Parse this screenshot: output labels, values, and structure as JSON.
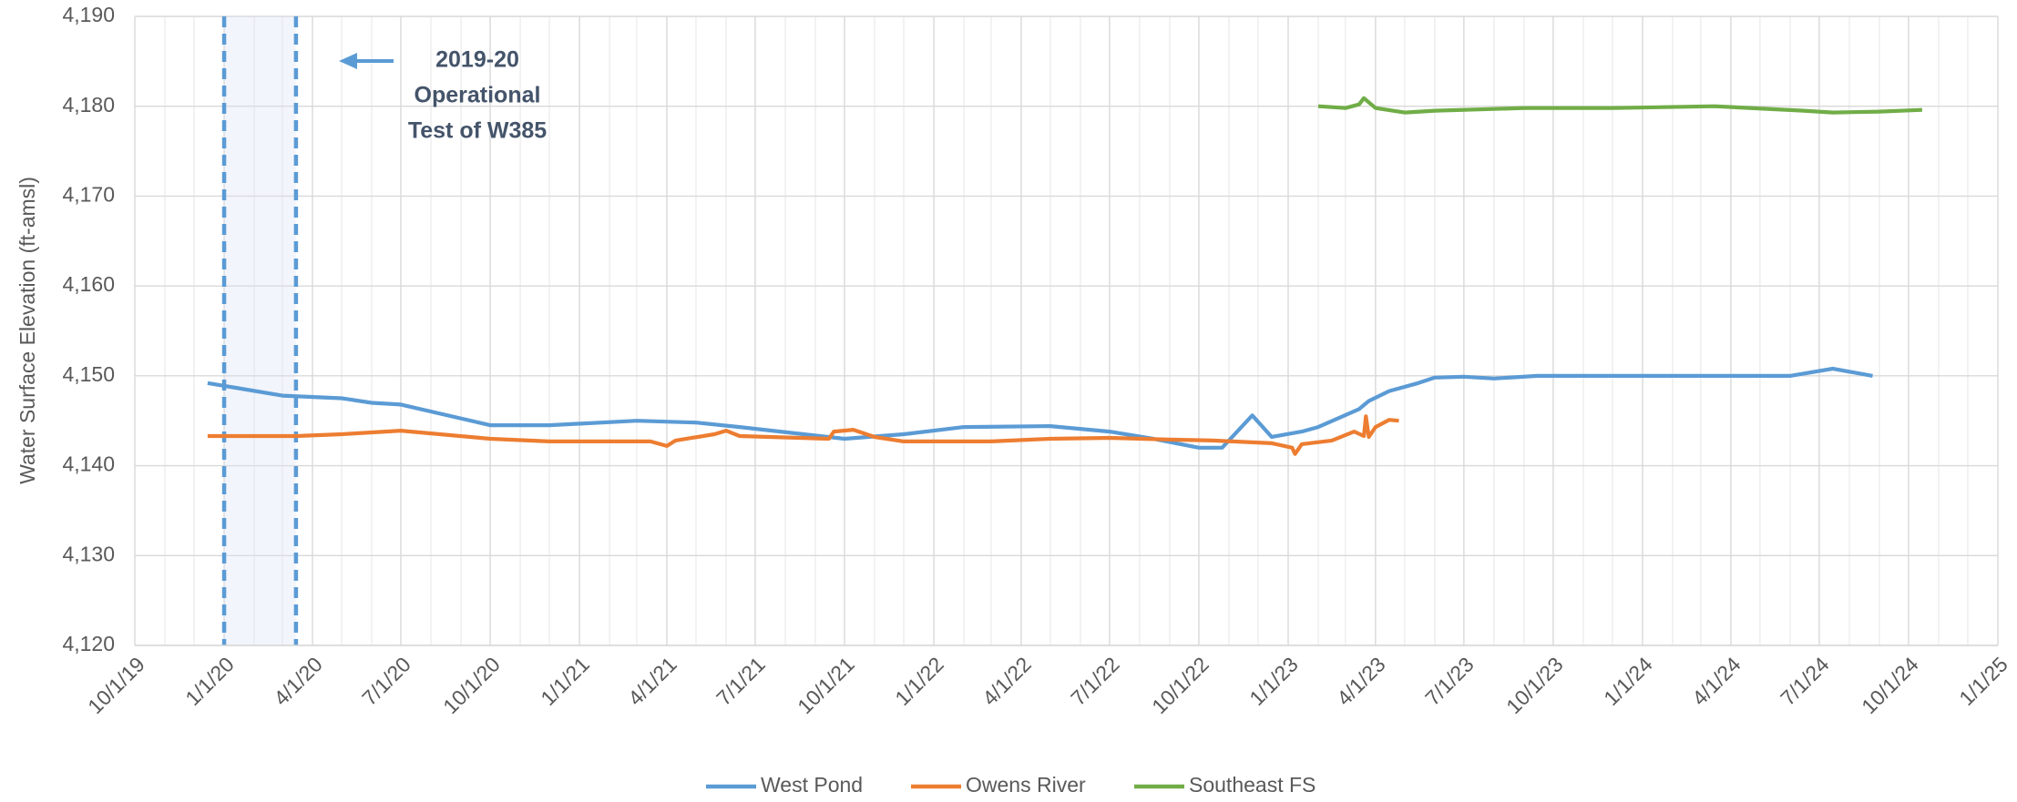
{
  "chart_data": {
    "type": "line",
    "y_label": "Water Surface Elevation (ft-amsl)",
    "xlim": [
      "10/1/19",
      "1/1/25"
    ],
    "xticks": [
      "10/1/19",
      "1/1/20",
      "4/1/20",
      "7/1/20",
      "10/1/20",
      "1/1/21",
      "4/1/21",
      "7/1/21",
      "10/1/21",
      "1/1/22",
      "4/1/22",
      "7/1/22",
      "10/1/22",
      "1/1/23",
      "4/1/23",
      "7/1/23",
      "10/1/23",
      "1/1/24",
      "4/1/24",
      "7/1/24",
      "10/1/24",
      "1/1/25"
    ],
    "ylim": [
      4120,
      4190
    ],
    "yticks": [
      {
        "value": 4120,
        "label": "4,120"
      },
      {
        "value": 4130,
        "label": "4,130"
      },
      {
        "value": 4140,
        "label": "4,140"
      },
      {
        "value": 4150,
        "label": "4,150"
      },
      {
        "value": 4160,
        "label": "4,160"
      },
      {
        "value": 4170,
        "label": "4,170"
      },
      {
        "value": 4180,
        "label": "4,180"
      },
      {
        "value": 4190,
        "label": "4,190"
      }
    ],
    "grid": true,
    "legend": "bottom",
    "shaded_period": [
      "1/1/20",
      "3/15/20"
    ],
    "annotation": [
      "2019-20",
      "Operational",
      "Test of W385"
    ],
    "series": [
      {
        "name": "West Pond",
        "color": "#5b9bd5",
        "x": [
          "12/15/19",
          "3/1/20",
          "5/1/20",
          "6/1/20",
          "7/1/20",
          "10/1/20",
          "12/1/20",
          "3/1/21",
          "5/1/21",
          "6/15/21",
          "10/1/21",
          "12/1/21",
          "2/1/22",
          "5/1/22",
          "7/1/22",
          "8/15/22",
          "10/1/22",
          "10/25/22",
          "11/25/22",
          "12/15/22",
          "1/15/23",
          "2/1/23",
          "3/15/23",
          "3/25/23",
          "4/15/23",
          "5/15/23",
          "6/1/23",
          "7/1/23",
          "8/1/23",
          "9/15/23",
          "11/1/23",
          "3/1/24",
          "6/1/24",
          "7/15/24",
          "8/25/24"
        ],
        "values": [
          4149.2,
          4147.8,
          4147.5,
          4147,
          4146.8,
          4144.5,
          4144.5,
          4145,
          4144.8,
          4144.3,
          4143,
          4143.5,
          4144.3,
          4144.4,
          4143.8,
          4143,
          4142,
          4142,
          4145.6,
          4143.2,
          4143.8,
          4144.3,
          4146.3,
          4147.2,
          4148.3,
          4149.2,
          4149.8,
          4149.9,
          4149.7,
          4150,
          4150,
          4150,
          4150,
          4150.8,
          4150
        ]
      },
      {
        "name": "Owens River",
        "color": "#ed7d31",
        "x": [
          "12/15/19",
          "3/15/20",
          "5/1/20",
          "7/1/20",
          "10/1/20",
          "12/1/20",
          "3/15/21",
          "4/1/21",
          "4/10/21",
          "5/20/21",
          "6/1/21",
          "6/15/21",
          "9/15/21",
          "9/20/21",
          "10/10/21",
          "11/1/21",
          "12/1/21",
          "3/1/22",
          "5/1/22",
          "7/1/22",
          "9/1/22",
          "10/15/22",
          "12/15/22",
          "1/5/23",
          "1/8/23",
          "1/15/23",
          "2/15/23",
          "3/10/23",
          "3/20/23",
          "3/22/23",
          "3/25/23",
          "4/1/23",
          "4/15/23",
          "4/25/23"
        ],
        "values": [
          4143.3,
          4143.3,
          4143.5,
          4143.9,
          4143,
          4142.7,
          4142.7,
          4142.2,
          4142.8,
          4143.5,
          4143.9,
          4143.3,
          4143,
          4143.8,
          4144,
          4143.2,
          4142.7,
          4142.7,
          4143,
          4143.1,
          4142.9,
          4142.8,
          4142.5,
          4142,
          4141.3,
          4142.4,
          4142.8,
          4143.8,
          4143.3,
          4145.5,
          4143.2,
          4144.3,
          4145.1,
          4145
        ]
      },
      {
        "name": "Southeast FS",
        "color": "#70ad47",
        "x": [
          "2/1/23",
          "3/1/23",
          "3/15/23",
          "3/20/23",
          "4/1/23",
          "5/1/23",
          "6/1/23",
          "9/1/23",
          "12/1/23",
          "3/15/24",
          "6/15/24",
          "7/15/24",
          "9/1/24",
          "10/15/24"
        ],
        "values": [
          4180,
          4179.8,
          4180.2,
          4180.9,
          4179.8,
          4179.3,
          4179.5,
          4179.8,
          4179.8,
          4180,
          4179.5,
          4179.3,
          4179.4,
          4179.6
        ]
      }
    ]
  }
}
